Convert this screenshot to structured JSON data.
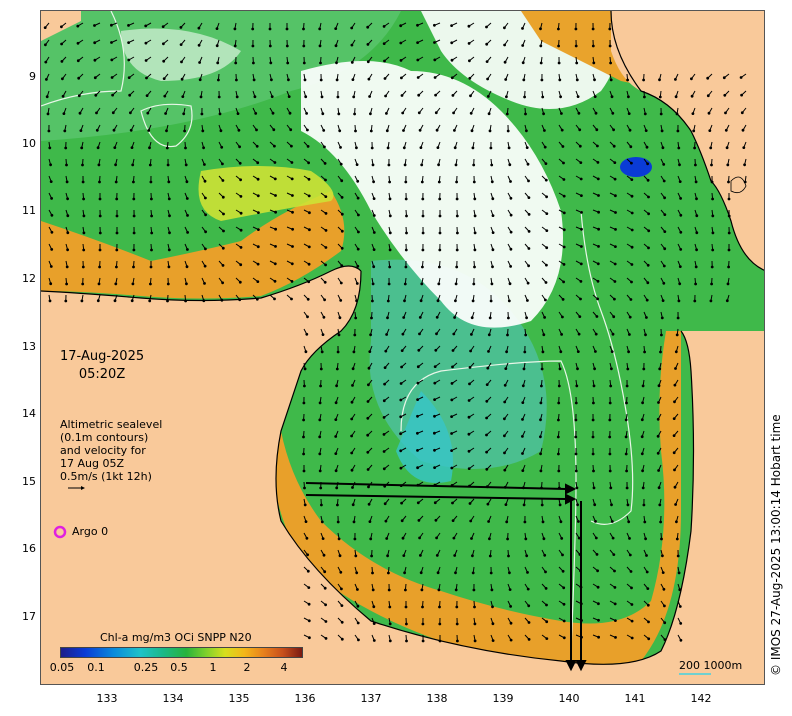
{
  "map": {
    "y_axis_labels": [
      "9",
      "10",
      "11",
      "12",
      "13",
      "14",
      "15",
      "16",
      "17"
    ],
    "x_axis_labels": [
      "133",
      "134",
      "135",
      "136",
      "137",
      "138",
      "139",
      "140",
      "141",
      "142"
    ],
    "timestamp": {
      "date": "17-Aug-2025",
      "time": "05:20Z"
    },
    "note_lines": [
      "Altimetric sealevel",
      "(0.1m contours)",
      "and velocity for",
      "17 Aug 05Z",
      "0.5m/s (1kt 12h)"
    ],
    "argo_label": "Argo 0",
    "colorbar": {
      "title": "Chl-a mg/m3 OCi SNPP N20",
      "ticks": [
        "0.05",
        "0.1",
        "0.25",
        "0.5",
        "1",
        "2",
        "4"
      ]
    },
    "scale_label": "200  1000m",
    "credit": "© IMOS 27-Aug-2025 13:00:14 Hobart time",
    "colors": {
      "land": "#f9c99a",
      "ocean_green": "#3fb94a",
      "coastal_orange": "#e88a1c",
      "cloud": "#ffffff",
      "argo_marker": "#e020e0"
    }
  }
}
